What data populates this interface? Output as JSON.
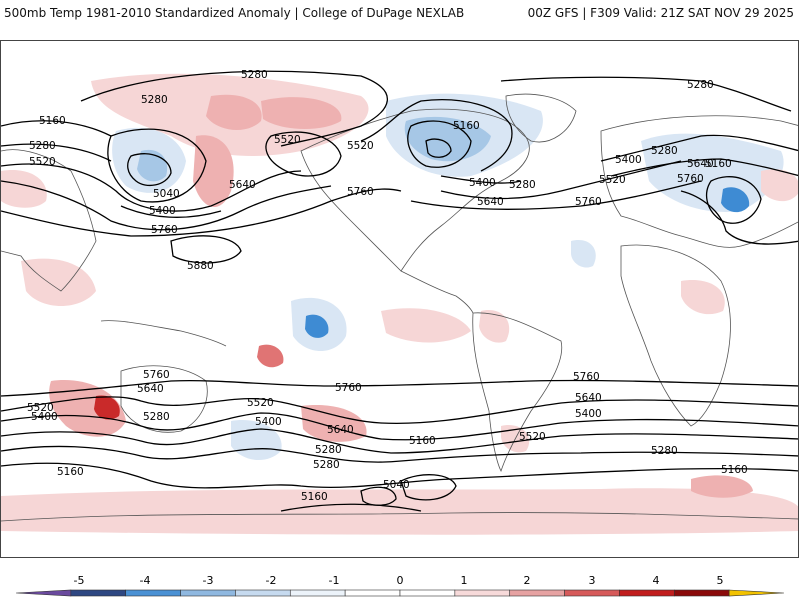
{
  "header": {
    "title": "500mb Temp 1981-2010 Standardized Anomaly | College of DuPage NEXLAB",
    "run_info": "00Z GFS | F309 Valid: 21Z SAT NOV 29 2025"
  },
  "map": {
    "contour_labels": [
      "5280",
      "5280",
      "5160",
      "5280",
      "5520",
      "5040",
      "5400",
      "5640",
      "5760",
      "5880",
      "5520",
      "5520",
      "5160",
      "5400",
      "5280",
      "5640",
      "5760",
      "5280",
      "5400",
      "5520",
      "5760",
      "5280",
      "5640",
      "5760",
      "5160",
      "5760",
      "5640",
      "5520",
      "5400",
      "5280",
      "5520",
      "5400",
      "5280",
      "5640",
      "5760",
      "5160",
      "5040",
      "5160",
      "5280",
      "5400",
      "5640",
      "5760",
      "5520",
      "5280",
      "5160"
    ],
    "colors": {
      "warm_1": "#f6d6d6",
      "warm_2": "#eeb1b1",
      "warm_3": "#e07474",
      "warm_4": "#c92a2a",
      "cool_1": "#d9e6f4",
      "cool_2": "#a6c7e6",
      "cool_3": "#3e8bd3"
    }
  },
  "colorbar": {
    "tick_labels": [
      "-5",
      "-4",
      "-3",
      "-2",
      "-1",
      "0",
      "1",
      "2",
      "3",
      "4",
      "5"
    ],
    "colors": [
      "#6a4a9e",
      "#2e4782",
      "#4a91d4",
      "#8fb8e0",
      "#c6daef",
      "#ecf3fa",
      "#ffffff",
      "#ffffff",
      "#f7dada",
      "#e6a2a2",
      "#d65a5a",
      "#c11e1e",
      "#8a0a0a",
      "#f2c200"
    ]
  }
}
